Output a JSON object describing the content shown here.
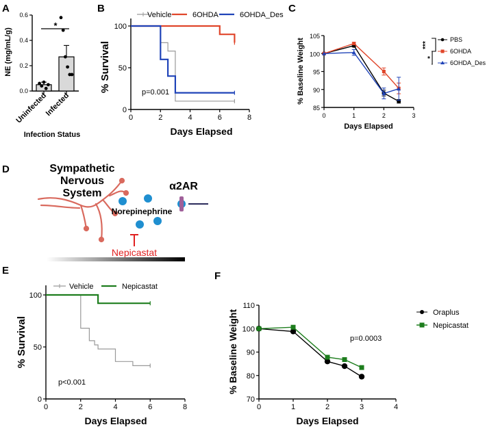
{
  "panel_labels": {
    "a": "A",
    "b": "B",
    "c": "C",
    "d": "D",
    "e": "E",
    "f": "F"
  },
  "colors": {
    "black": "#000000",
    "gray": "#999999",
    "red": "#e0452a",
    "blue": "#1f43b8",
    "green": "#1d7d1d",
    "nerve": "#d96a5e",
    "dot": "#1f8fd0",
    "receptor": "#a0609a",
    "inhibitor": "#e02020",
    "bar_fill": "#d9d9d9"
  },
  "chart_data": [
    {
      "id": "A",
      "type": "bar",
      "title": "",
      "xlabel": "Infection Status",
      "ylabel": "NE (mg/mL/g)",
      "categories": [
        "Uninfected",
        "Infected"
      ],
      "values": [
        0.05,
        0.27
      ],
      "errors": [
        0.02,
        0.09
      ],
      "points": [
        [
          0.06,
          0.04,
          0.07,
          0.02,
          0.05
        ],
        [
          0.58,
          0.48,
          0.27,
          0.19,
          0.13,
          0.13
        ]
      ],
      "ylim": [
        0,
        0.6
      ],
      "yticks": [
        "0.0",
        "0.2",
        "0.4",
        "0.6"
      ],
      "significance": "*"
    },
    {
      "id": "B",
      "type": "line",
      "xlabel": "Days Elapsed",
      "ylabel": "% Survival",
      "xlim": [
        0,
        8
      ],
      "ylim": [
        0,
        100
      ],
      "xticks": [
        "0",
        "2",
        "4",
        "6",
        "8"
      ],
      "yticks": [
        "0",
        "50",
        "100"
      ],
      "annotation": "p=0.001",
      "series": [
        {
          "name": "Vehicle",
          "points": [
            [
              0,
              100
            ],
            [
              2,
              100
            ],
            [
              2,
              80
            ],
            [
              2.5,
              80
            ],
            [
              2.5,
              70
            ],
            [
              3,
              70
            ],
            [
              3,
              10
            ],
            [
              7,
              10
            ]
          ]
        },
        {
          "name": "6OHDA",
          "points": [
            [
              0,
              100
            ],
            [
              6,
              100
            ],
            [
              6,
              90
            ],
            [
              7,
              90
            ],
            [
              7,
              80
            ]
          ]
        },
        {
          "name": "6OHDA_Des",
          "points": [
            [
              0,
              100
            ],
            [
              2,
              100
            ],
            [
              2,
              60
            ],
            [
              2.5,
              60
            ],
            [
              2.5,
              40
            ],
            [
              3,
              40
            ],
            [
              3,
              20
            ],
            [
              7,
              20
            ]
          ]
        }
      ]
    },
    {
      "id": "C",
      "type": "line",
      "xlabel": "Days Elapsed",
      "ylabel": "% Baseline Weight",
      "xlim": [
        0,
        3
      ],
      "ylim": [
        85,
        105
      ],
      "xticks": [
        "0",
        "1",
        "2",
        "3"
      ],
      "yticks": [
        "85",
        "90",
        "95",
        "100",
        "105"
      ],
      "significance": [
        "***",
        "*"
      ],
      "series": [
        {
          "name": "PBS",
          "x": [
            0,
            1,
            2,
            2.5
          ],
          "y": [
            100,
            102.2,
            89,
            86.7
          ],
          "err": [
            0,
            0.4,
            0.8,
            0.5
          ]
        },
        {
          "name": "6OHDA",
          "x": [
            0,
            1,
            2,
            2.5
          ],
          "y": [
            100,
            102.8,
            95,
            90.3
          ],
          "err": [
            0,
            0.3,
            1.0,
            1.5
          ]
        },
        {
          "name": "6OHDA_Des",
          "x": [
            0,
            1,
            2,
            2.5
          ],
          "y": [
            100,
            100.3,
            88.9,
            90.2
          ],
          "err": [
            0,
            0.8,
            1.5,
            3.2
          ]
        }
      ]
    },
    {
      "id": "E",
      "type": "line",
      "xlabel": "Days Elapsed",
      "ylabel": "% Survival",
      "xlim": [
        0,
        8
      ],
      "ylim": [
        0,
        100
      ],
      "xticks": [
        "0",
        "2",
        "4",
        "6",
        "8"
      ],
      "yticks": [
        "0",
        "50",
        "100"
      ],
      "annotation": "p<0.001",
      "series": [
        {
          "name": "Vehicle",
          "points": [
            [
              0,
              100
            ],
            [
              2,
              100
            ],
            [
              2,
              68
            ],
            [
              2.5,
              68
            ],
            [
              2.5,
              56
            ],
            [
              2.8,
              56
            ],
            [
              2.8,
              52
            ],
            [
              3,
              52
            ],
            [
              3,
              48
            ],
            [
              4,
              48
            ],
            [
              4,
              36
            ],
            [
              5,
              36
            ],
            [
              5,
              32
            ],
            [
              6,
              32
            ]
          ]
        },
        {
          "name": "Nepicastat",
          "points": [
            [
              0,
              100
            ],
            [
              3,
              100
            ],
            [
              3,
              92
            ],
            [
              6,
              92
            ]
          ]
        }
      ]
    },
    {
      "id": "F",
      "type": "line",
      "xlabel": "Days Elapsed",
      "ylabel": "% Baseline Weight",
      "xlim": [
        0,
        4
      ],
      "ylim": [
        70,
        110
      ],
      "xticks": [
        "0",
        "1",
        "2",
        "3",
        "4"
      ],
      "yticks": [
        "70",
        "80",
        "90",
        "100",
        "110"
      ],
      "annotation": "p=0.0003",
      "series": [
        {
          "name": "Oraplus",
          "x": [
            0,
            1,
            2,
            2.5,
            3
          ],
          "y": [
            100,
            98.8,
            86,
            84,
            79.5
          ],
          "err": [
            0,
            0.4,
            0.5,
            0.5,
            0.8
          ]
        },
        {
          "name": "Nepicastat",
          "x": [
            0,
            1,
            2,
            2.5,
            3
          ],
          "y": [
            100,
            100.6,
            87.8,
            86.8,
            83.4
          ],
          "err": [
            0,
            0.4,
            0.5,
            0.5,
            0.6
          ]
        }
      ]
    }
  ],
  "diagram": {
    "nervous_system": "Sympathetic Nervous System",
    "ns_line1": "Sympathetic",
    "ns_line2": "Nervous",
    "ns_line3": "System",
    "molecule": "Norepinephrine",
    "receptor": "α2AR",
    "inhibitor": "Nepicastat"
  }
}
